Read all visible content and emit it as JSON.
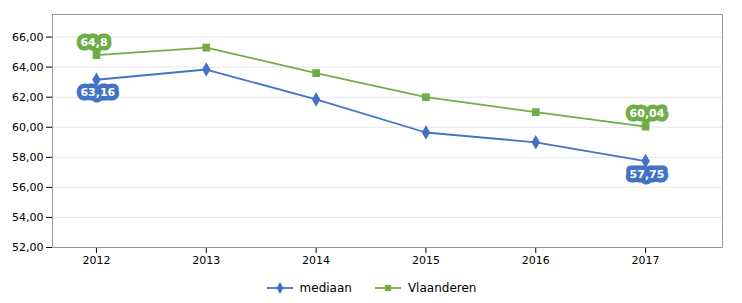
{
  "chart_data": {
    "type": "line",
    "x": [
      2012,
      2013,
      2014,
      2015,
      2016,
      2017
    ],
    "xlim": [
      2011.6,
      2017.7
    ],
    "xticks": [
      2012,
      2013,
      2014,
      2015,
      2016,
      2017
    ],
    "ylim": [
      52.0,
      67.5
    ],
    "yticks": [
      {
        "value": 52.0,
        "label": "52,00"
      },
      {
        "value": 54.0,
        "label": "54,00"
      },
      {
        "value": 56.0,
        "label": "56,00"
      },
      {
        "value": 58.0,
        "label": "58,00"
      },
      {
        "value": 60.0,
        "label": "60,00"
      },
      {
        "value": 62.0,
        "label": "62,00"
      },
      {
        "value": 64.0,
        "label": "64,00"
      },
      {
        "value": 66.0,
        "label": "66,00"
      }
    ],
    "grid": true,
    "legend": "bottom",
    "series": [
      {
        "name": "mediaan",
        "color": "#4472C4",
        "marker": "diamond",
        "values": [
          63.16,
          63.84,
          61.85,
          59.65,
          59.0,
          57.75
        ]
      },
      {
        "name": "Vlaanderen",
        "color": "#70AD47",
        "marker": "square",
        "values": [
          64.8,
          65.3,
          63.6,
          62.0,
          61.0,
          60.04
        ]
      }
    ],
    "annotations": [
      {
        "x": 2012,
        "y": 64.8,
        "text": "64,8",
        "color": "#70AD47"
      },
      {
        "x": 2012,
        "y": 63.16,
        "text": "63,16",
        "color": "#4472C4"
      },
      {
        "x": 2017,
        "y": 60.04,
        "text": "60,04",
        "color": "#70AD47"
      },
      {
        "x": 2017,
        "y": 57.75,
        "text": "57,75",
        "color": "#4472C4"
      }
    ]
  }
}
